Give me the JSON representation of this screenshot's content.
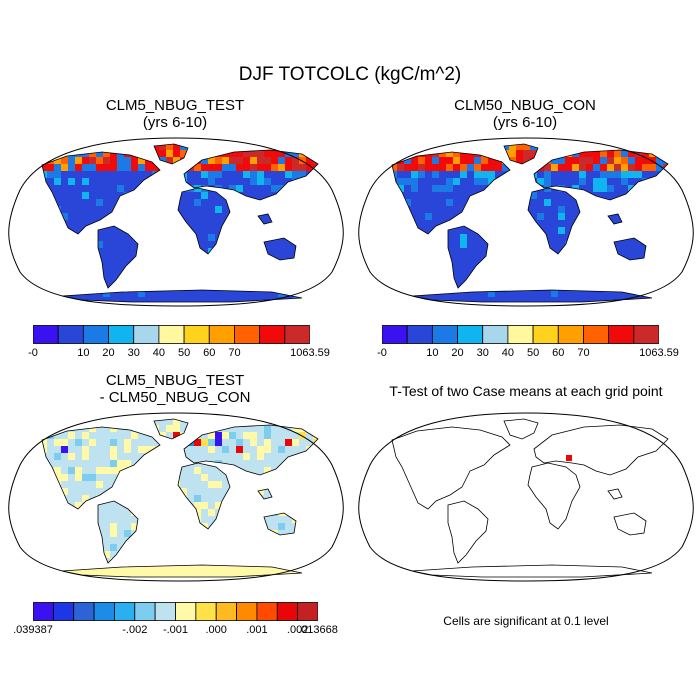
{
  "title": "DJF TOTCOLC (kgC/m^2)",
  "panels": [
    {
      "id": "test",
      "title_line1": "CLM5_NBUG_TEST",
      "title_line2": "(yrs 6-10)",
      "colorbar": {
        "colors": [
          "#3a12f0",
          "#2a46d8",
          "#1c7ae6",
          "#10b4ee",
          "#a8d6ec",
          "#fff8a0",
          "#ffd21e",
          "#ffa000",
          "#ff6200",
          "#f00a0a",
          "#cc2a2a"
        ],
        "labels": [
          "-0",
          "10",
          "20",
          "30",
          "40",
          "50",
          "60",
          "70",
          "1063.59"
        ]
      }
    },
    {
      "id": "control",
      "title_line1": "CLM50_NBUG_CON",
      "title_line2": "(yrs 6-10)",
      "colorbar": {
        "colors": [
          "#3a12f0",
          "#2a46d8",
          "#1c7ae6",
          "#10b4ee",
          "#a8d6ec",
          "#fff8a0",
          "#ffd21e",
          "#ffa000",
          "#ff6200",
          "#f00a0a",
          "#cc2a2a"
        ],
        "labels": [
          "-0",
          "10",
          "20",
          "30",
          "40",
          "50",
          "60",
          "70",
          "1063.59"
        ]
      }
    },
    {
      "id": "difference",
      "title_line1": "CLM5_NBUG_TEST",
      "title_line2": "- CLM50_NBUG_CON",
      "colorbar": {
        "colors": [
          "#3a12f0",
          "#1f36e6",
          "#2c64d8",
          "#1c8ce8",
          "#2ab0f0",
          "#7ccdf0",
          "#bfe2f0",
          "#fff9a8",
          "#ffe14a",
          "#ffba22",
          "#ff8a00",
          "#ff4a00",
          "#e80606",
          "#c42222"
        ],
        "labels": [
          ".039387",
          "-.002",
          "-.001",
          ".000",
          ".001",
          ".002",
          ".013668"
        ]
      }
    },
    {
      "id": "ttest",
      "title": "T-Test of two Case means at each grid point",
      "note": "Cells are significant at 0.1 level"
    }
  ]
}
